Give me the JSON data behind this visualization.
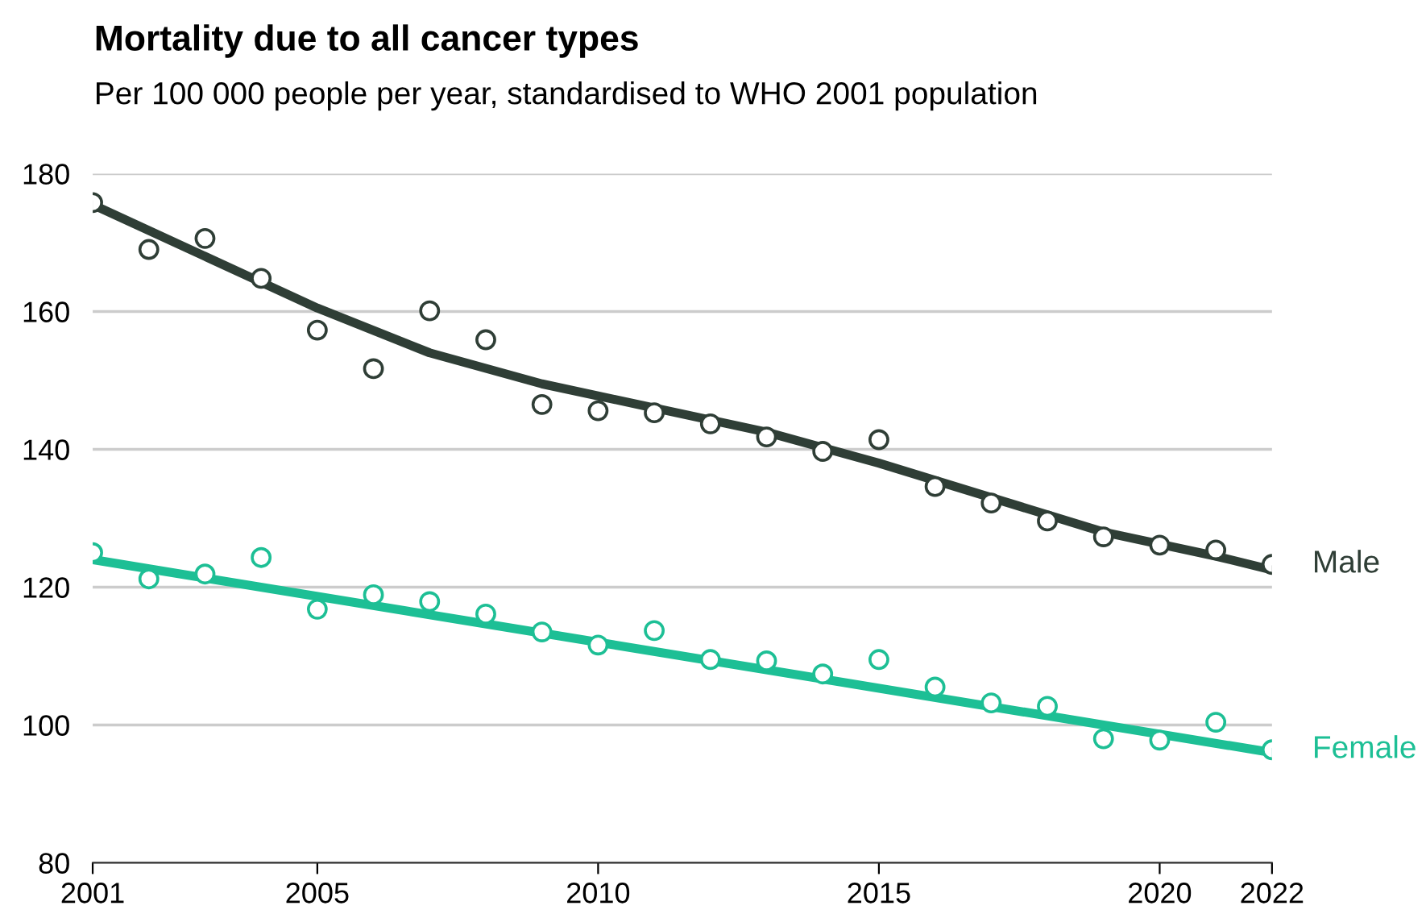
{
  "chart_data": {
    "type": "scatter",
    "title": "Mortality due to all cancer types",
    "subtitle": "Per 100 000 people per year, standardised to WHO 2001 population",
    "x": [
      2001,
      2002,
      2003,
      2004,
      2005,
      2006,
      2007,
      2008,
      2009,
      2010,
      2011,
      2012,
      2013,
      2014,
      2015,
      2016,
      2017,
      2018,
      2019,
      2020,
      2021,
      2022
    ],
    "series": [
      {
        "name": "Male",
        "marker": "circle",
        "color": "#2f3e36",
        "values": [
          175.8,
          169.0,
          170.6,
          164.8,
          157.3,
          151.7,
          160.1,
          155.9,
          146.5,
          145.6,
          145.3,
          143.7,
          141.8,
          139.7,
          141.4,
          134.6,
          132.2,
          129.6,
          127.3,
          126.1,
          125.4,
          123.3
        ]
      },
      {
        "type": "line",
        "marker": "none",
        "color": "#2f3e36",
        "x": [
          2001,
          2003,
          2005,
          2007,
          2009,
          2011,
          2013,
          2015,
          2017,
          2019,
          2021,
          2022
        ],
        "values": [
          175.5,
          168,
          160.5,
          154,
          149.5,
          146,
          142.5,
          138,
          133,
          128,
          124.5,
          122.5
        ]
      },
      {
        "name": "Female",
        "marker": "circle",
        "color": "#1dbf95",
        "values": [
          125.0,
          121.2,
          121.9,
          124.3,
          116.8,
          118.9,
          117.9,
          116.1,
          113.5,
          111.6,
          113.7,
          109.5,
          109.3,
          107.4,
          109.5,
          105.5,
          103.2,
          102.7,
          98.0,
          97.8,
          100.4,
          96.4
        ]
      },
      {
        "type": "line",
        "marker": "none",
        "color": "#1dbf95",
        "x": [
          2001,
          2022
        ],
        "values": [
          124,
          96
        ]
      }
    ],
    "xlim": [
      2001,
      2022
    ],
    "xticks": [
      2001,
      2005,
      2010,
      2015,
      2020,
      2022
    ],
    "ylim": [
      80,
      180
    ],
    "yticks": [
      80,
      100,
      120,
      140,
      160,
      180
    ],
    "grid": "y",
    "legend": false
  }
}
